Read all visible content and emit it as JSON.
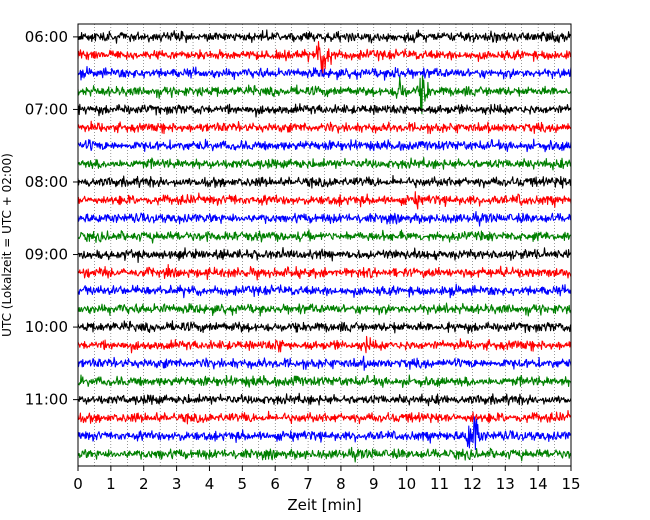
{
  "chart_data": {
    "type": "line",
    "title": "",
    "xlabel": "Zeit  [min]",
    "ylabel": "UTC (Lokalzeit = UTC + 02:00)",
    "xlim": [
      0,
      15
    ],
    "xticks": [
      0,
      1,
      2,
      3,
      4,
      5,
      6,
      7,
      8,
      9,
      10,
      11,
      12,
      13,
      14,
      15
    ],
    "xtick_labels": [
      "0",
      "1",
      "2",
      "3",
      "4",
      "5",
      "6",
      "7",
      "8",
      "9",
      "10",
      "11",
      "12",
      "13",
      "14",
      "15"
    ],
    "ytick_labels": [
      "06:00",
      "07:00",
      "08:00",
      "09:00",
      "10:00",
      "11:00"
    ],
    "ytick_rows": [
      0,
      4,
      8,
      12,
      16,
      20
    ],
    "grid": {
      "vertical_dotted": true,
      "minor_step": 0.5
    },
    "colors": [
      "#000000",
      "#ff0000",
      "#0000ff",
      "#008000"
    ],
    "row_count": 24,
    "row_minutes": 15,
    "rows": [
      {
        "start": "06:00",
        "color": "#000000",
        "events": [
          [
            10.3,
            1.8
          ],
          [
            14.5,
            1.6
          ]
        ]
      },
      {
        "start": "06:15",
        "color": "#ff0000",
        "events": [
          [
            7.4,
            4.5
          ],
          [
            7.7,
            3.2
          ],
          [
            8.8,
            1.2
          ]
        ]
      },
      {
        "start": "06:30",
        "color": "#0000ff",
        "events": [
          [
            9.7,
            2.0
          ]
        ]
      },
      {
        "start": "06:45",
        "color": "#008000",
        "events": [
          [
            9.8,
            4.0
          ],
          [
            10.5,
            5.0
          ],
          [
            12.8,
            1.2
          ]
        ]
      },
      {
        "start": "07:00",
        "color": "#000000",
        "events": [
          [
            1.4,
            1.2
          ]
        ]
      },
      {
        "start": "07:15",
        "color": "#ff0000",
        "events": [
          [
            14.6,
            1.4
          ]
        ]
      },
      {
        "start": "07:30",
        "color": "#0000ff",
        "events": [
          [
            0.4,
            1.4
          ],
          [
            14.3,
            1.2
          ]
        ]
      },
      {
        "start": "07:45",
        "color": "#008000",
        "events": [
          [
            6.7,
            1.3
          ],
          [
            13.4,
            1.2
          ]
        ]
      },
      {
        "start": "08:00",
        "color": "#000000",
        "events": [
          [
            0.3,
            1.3
          ],
          [
            14.7,
            1.4
          ]
        ]
      },
      {
        "start": "08:15",
        "color": "#ff0000",
        "events": [
          [
            4.7,
            1.5
          ],
          [
            8.0,
            1.2
          ],
          [
            10.3,
            1.7
          ],
          [
            13.5,
            1.6
          ]
        ]
      },
      {
        "start": "08:30",
        "color": "#0000ff",
        "events": []
      },
      {
        "start": "08:45",
        "color": "#008000",
        "events": [
          [
            4.0,
            1.2
          ],
          [
            5.1,
            1.2
          ]
        ]
      },
      {
        "start": "09:00",
        "color": "#000000",
        "events": [
          [
            10.0,
            1.1
          ]
        ]
      },
      {
        "start": "09:15",
        "color": "#ff0000",
        "events": []
      },
      {
        "start": "09:30",
        "color": "#0000ff",
        "events": [
          [
            1.0,
            1.2
          ]
        ]
      },
      {
        "start": "09:45",
        "color": "#008000",
        "events": [
          [
            1.2,
            1.3
          ],
          [
            2.6,
            1.4
          ]
        ]
      },
      {
        "start": "10:00",
        "color": "#000000",
        "events": [
          [
            3.1,
            1.2
          ],
          [
            4.9,
            1.3
          ],
          [
            9.6,
            1.2
          ]
        ]
      },
      {
        "start": "10:15",
        "color": "#ff0000",
        "events": [
          [
            6.1,
            1.8
          ],
          [
            8.8,
            1.8
          ],
          [
            13.3,
            1.2
          ]
        ]
      },
      {
        "start": "10:30",
        "color": "#0000ff",
        "events": [
          [
            8.7,
            1.3
          ],
          [
            10.6,
            1.2
          ]
        ]
      },
      {
        "start": "10:45",
        "color": "#008000",
        "events": [
          [
            5.3,
            1.3
          ],
          [
            6.6,
            1.4
          ]
        ]
      },
      {
        "start": "11:00",
        "color": "#000000",
        "events": [
          [
            2.3,
            1.2
          ]
        ]
      },
      {
        "start": "11:15",
        "color": "#ff0000",
        "events": [
          [
            2.4,
            1.2
          ],
          [
            12.0,
            1.6
          ]
        ]
      },
      {
        "start": "11:30",
        "color": "#0000ff",
        "events": [
          [
            3.0,
            1.3
          ],
          [
            11.9,
            3.0
          ],
          [
            12.1,
            4.5
          ]
        ]
      },
      {
        "start": "11:45",
        "color": "#008000",
        "events": [
          [
            2.5,
            1.4
          ],
          [
            9.0,
            1.2
          ]
        ]
      }
    ]
  }
}
